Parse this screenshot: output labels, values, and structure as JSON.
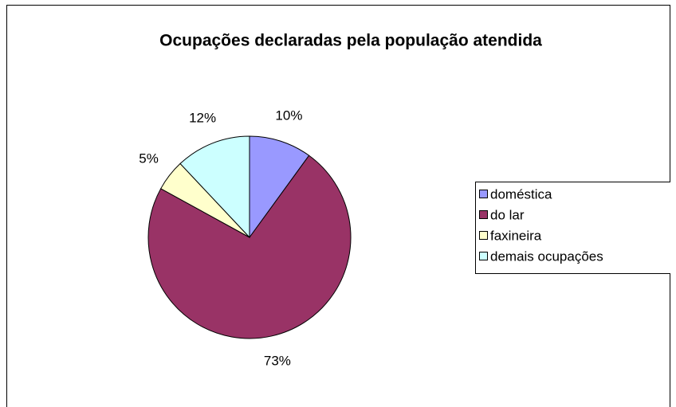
{
  "chart_data": {
    "type": "pie",
    "title": "Ocupações declaradas pela população atendida",
    "categories": [
      "doméstica",
      "do lar",
      "faxineira",
      "demais ocupações"
    ],
    "values": [
      10,
      73,
      5,
      12
    ],
    "value_labels": [
      "10%",
      "73%",
      "5%",
      "12%"
    ],
    "colors": [
      "#9999ff",
      "#993366",
      "#ffffcc",
      "#ccffff"
    ],
    "legend": "right"
  }
}
